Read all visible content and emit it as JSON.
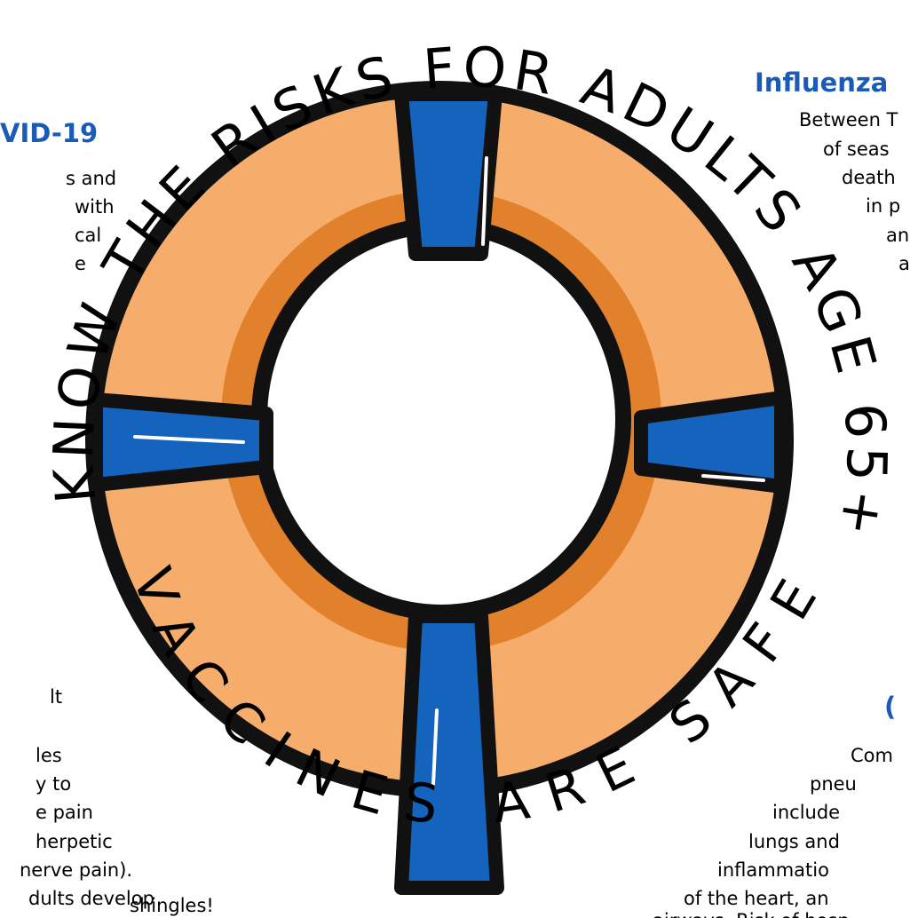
{
  "title_arc": "KNOW THE RISKS FOR ADULTS AGE 65+",
  "bottom_arc": "VACCINES ARE SAFE",
  "covid": {
    "heading": "VID-19",
    "lines": [
      "s and",
      "with",
      "cal",
      "e"
    ]
  },
  "influenza": {
    "heading": "Influenza",
    "lines": [
      "Between T",
      "of seas",
      "death",
      "in p",
      "an",
      "a"
    ]
  },
  "shingles": {
    "lines": [
      "lt",
      "les",
      "y to",
      "e pain",
      "herpetic",
      "nerve pain).",
      "dults develop",
      "shingles!"
    ]
  },
  "pneumonia": {
    "heading": "(",
    "lines": [
      "Com",
      "pneu",
      "include",
      "lungs and",
      "inflammatio",
      "of the heart, an",
      "airways. Risk of hosp"
    ]
  }
}
